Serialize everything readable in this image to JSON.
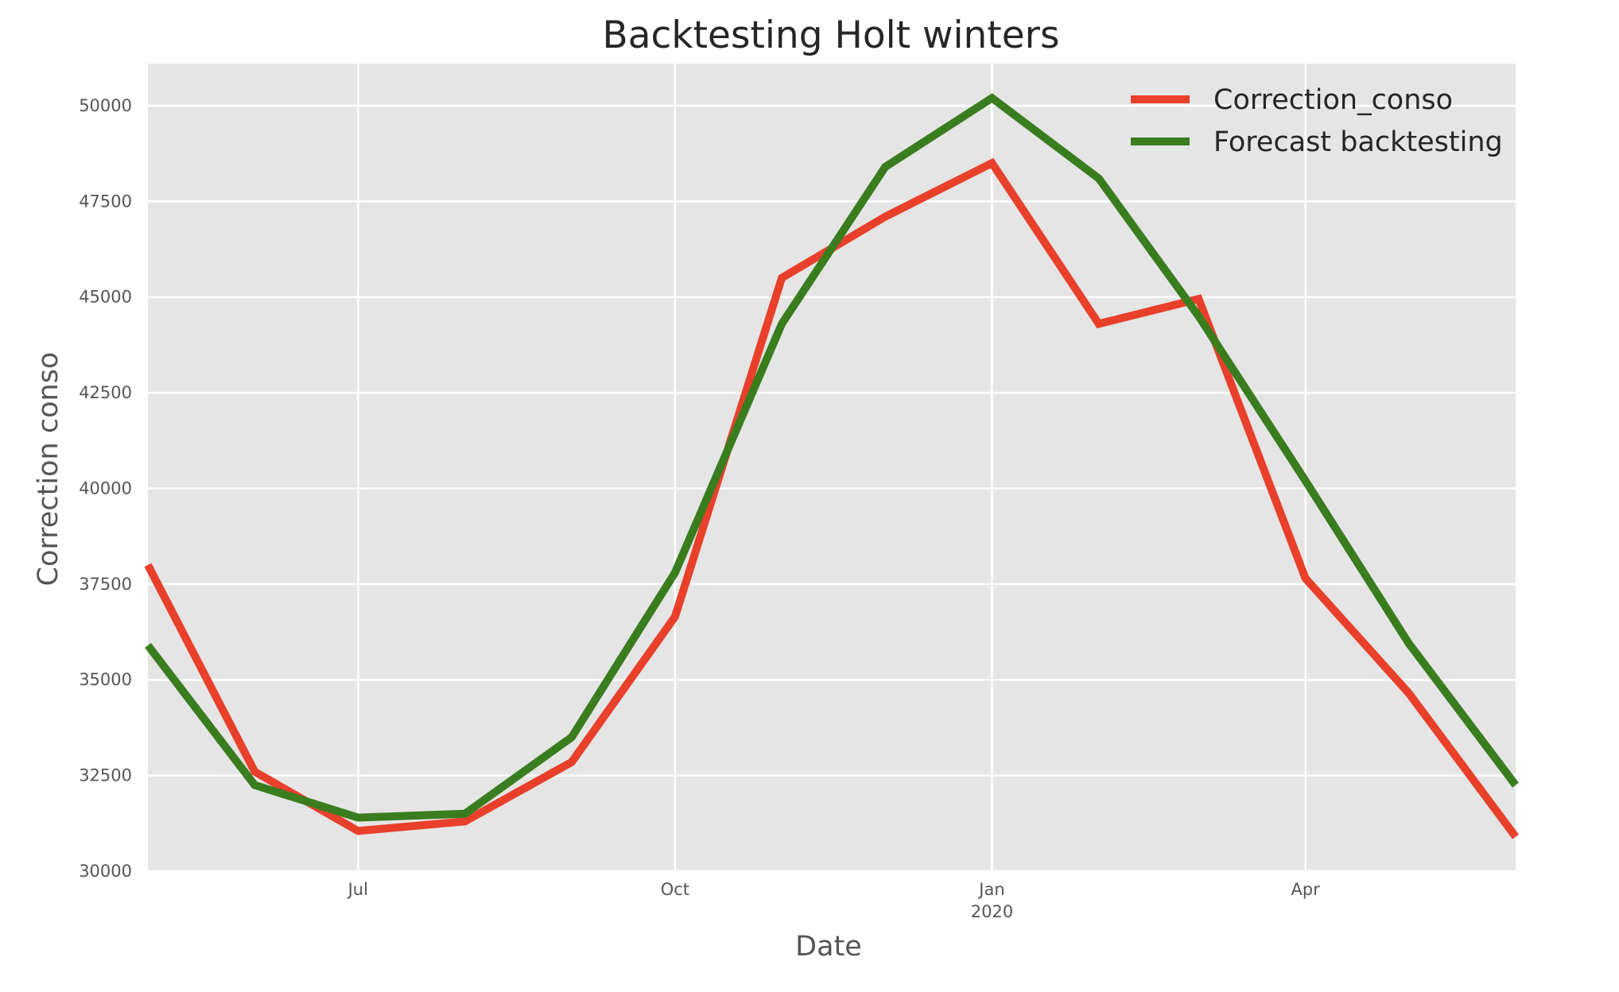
{
  "chart_data": {
    "type": "line",
    "title": "Backtesting Holt winters",
    "xlabel": "Date",
    "ylabel": "Correction conso",
    "x": [
      "2019-05-01",
      "2019-06-01",
      "2019-07-01",
      "2019-08-01",
      "2019-09-01",
      "2019-10-01",
      "2019-11-01",
      "2019-12-01",
      "2020-01-01",
      "2020-02-01",
      "2020-03-01",
      "2020-04-01",
      "2020-05-01",
      "2020-06-01"
    ],
    "xlim": [
      "2019-05-01",
      "2020-06-01"
    ],
    "ylim": [
      30000,
      51100
    ],
    "x_ticks": [
      {
        "date": "2019-07-01",
        "label": "Jul",
        "sublabel": ""
      },
      {
        "date": "2019-10-01",
        "label": "Oct",
        "sublabel": ""
      },
      {
        "date": "2020-01-01",
        "label": "Jan",
        "sublabel": "2020"
      },
      {
        "date": "2020-04-01",
        "label": "Apr",
        "sublabel": ""
      }
    ],
    "y_ticks": [
      30000,
      32500,
      35000,
      37500,
      40000,
      42500,
      45000,
      47500,
      50000
    ],
    "y_tick_labels": [
      "30000",
      "32500",
      "35000",
      "37500",
      "40000",
      "42500",
      "45000",
      "47500",
      "50000"
    ],
    "grid": true,
    "legend_position": "top-right",
    "series": [
      {
        "name": "Correction_conso",
        "color": "#e8402a",
        "values": [
          38000,
          32600,
          31050,
          31300,
          32850,
          36650,
          45500,
          47100,
          48500,
          44300,
          44950,
          37650,
          34650,
          30900
        ]
      },
      {
        "name": "Forecast backtesting",
        "color": "#3a7d1f",
        "values": [
          35900,
          32250,
          31400,
          31500,
          33500,
          37800,
          44300,
          48400,
          50200,
          48100,
          44500,
          40200,
          35950,
          32250
        ]
      }
    ]
  }
}
